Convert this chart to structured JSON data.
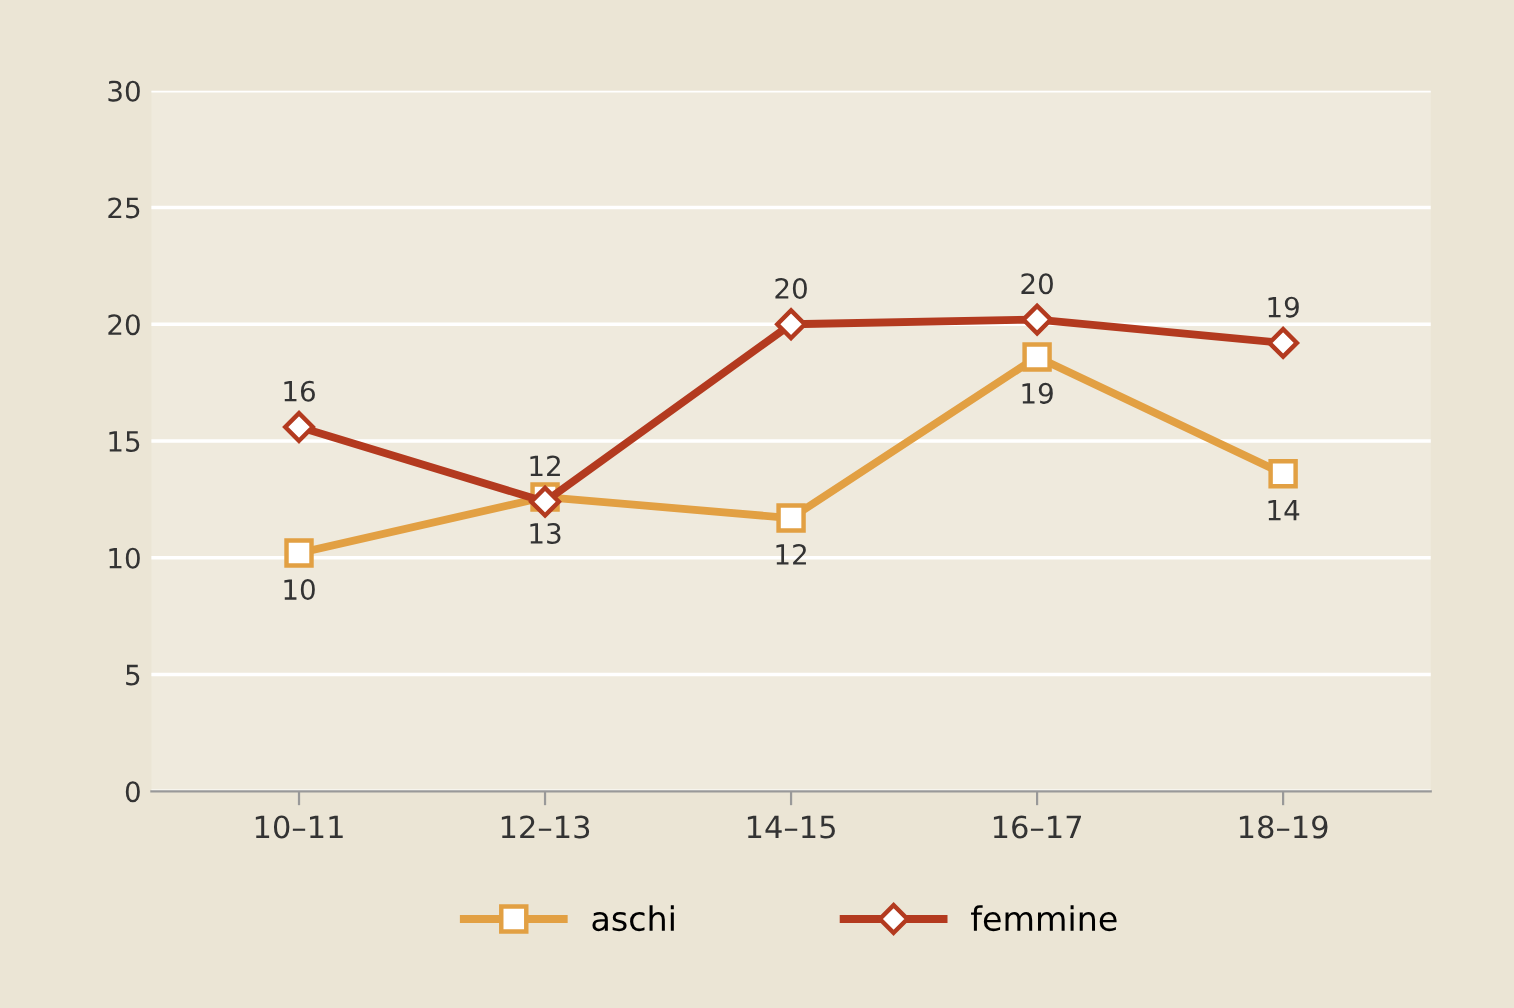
{
  "chart_data": {
    "type": "line",
    "categories": [
      "10–11",
      "12–13",
      "14–15",
      "16–17",
      "18–19"
    ],
    "series": [
      {
        "name": "aschi",
        "color": "#e2a043",
        "marker": "square",
        "values": [
          10.2,
          12.6,
          11.7,
          18.6,
          13.6
        ],
        "value_labels": [
          "10",
          "13",
          "12",
          "19",
          "14"
        ]
      },
      {
        "name": "femmine",
        "color": "#b33a1f",
        "marker": "diamond",
        "values": [
          15.6,
          12.4,
          20.0,
          20.2,
          19.2
        ],
        "value_labels": [
          "16",
          "12",
          "20",
          "20",
          "19"
        ]
      }
    ],
    "ylim": [
      0,
      30
    ],
    "yticks": [
      0,
      5,
      10,
      15,
      20,
      25,
      30
    ],
    "grid": "y",
    "legend": "bottom",
    "line_style": "solid"
  }
}
